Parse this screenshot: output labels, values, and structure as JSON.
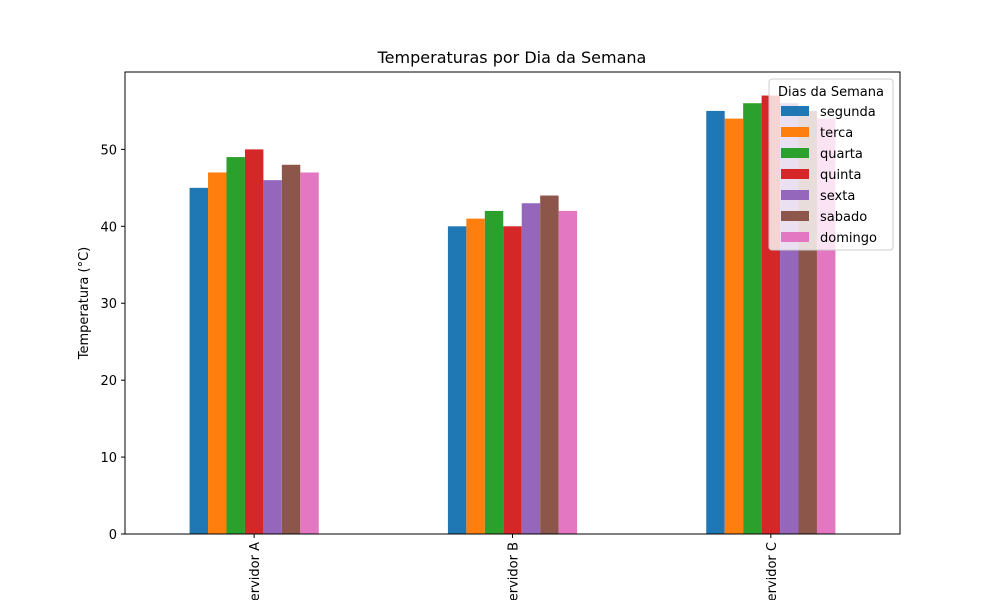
{
  "chart_data": {
    "type": "bar",
    "title": "Temperaturas por Dia da Semana",
    "xlabel": "",
    "ylabel": "Temperatura (°C)",
    "categories": [
      "Servidor A",
      "Servidor B",
      "Servidor C"
    ],
    "ylim": [
      0,
      60
    ],
    "yticks": [
      0,
      10,
      20,
      30,
      40,
      50
    ],
    "grid": false,
    "legend": {
      "title": "Dias da Semana",
      "placement": "top-right"
    },
    "series": [
      {
        "name": "segunda",
        "color": "#1f77b4",
        "values": [
          45,
          40,
          55
        ]
      },
      {
        "name": "terca",
        "color": "#ff7f0e",
        "values": [
          47,
          41,
          54
        ]
      },
      {
        "name": "quarta",
        "color": "#2ca02c",
        "values": [
          49,
          42,
          56
        ]
      },
      {
        "name": "quinta",
        "color": "#d62728",
        "values": [
          50,
          40,
          57
        ]
      },
      {
        "name": "sexta",
        "color": "#9467bd",
        "values": [
          46,
          43,
          56
        ]
      },
      {
        "name": "sabado",
        "color": "#8c564b",
        "values": [
          48,
          44,
          55
        ]
      },
      {
        "name": "domingo",
        "color": "#e377c2",
        "values": [
          47,
          42,
          54
        ]
      }
    ]
  }
}
